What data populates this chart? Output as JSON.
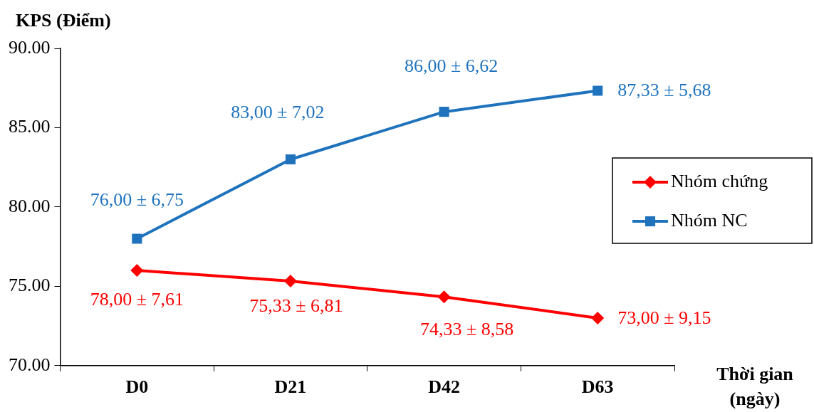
{
  "chart_data": {
    "type": "line",
    "ylabel": "KPS (Điểm)",
    "xlabel": "Thời gian (ngày)",
    "categories": [
      "D0",
      "D21",
      "D42",
      "D63"
    ],
    "ylim": [
      70,
      90
    ],
    "yticks": [
      {
        "value": 70,
        "label": "70.00"
      },
      {
        "value": 75,
        "label": "75.00"
      },
      {
        "value": 80,
        "label": "80.00"
      },
      {
        "value": 85,
        "label": "85.00"
      },
      {
        "value": 90,
        "label": "90.00"
      }
    ],
    "series": [
      {
        "name": "Nhóm chứng",
        "color": "#ff0000",
        "marker": "diamond",
        "values": [
          76,
          75.33,
          74.33,
          73
        ]
      },
      {
        "name": "Nhóm NC",
        "color": "#1f73bd",
        "marker": "square",
        "values": [
          78,
          83,
          86,
          87.33
        ]
      }
    ],
    "annotations": [
      "78,00 ± 7,61",
      "75,33 ± 6,81",
      "74,33 ± 8,58",
      "73,00 ± 9,15",
      "76,00 ± 6,75",
      "83,00 ± 7,02",
      "86,00 ± 6,62",
      "87,33 ± 5,68"
    ],
    "grid": false,
    "legend": "right",
    "line_style": "solid"
  }
}
